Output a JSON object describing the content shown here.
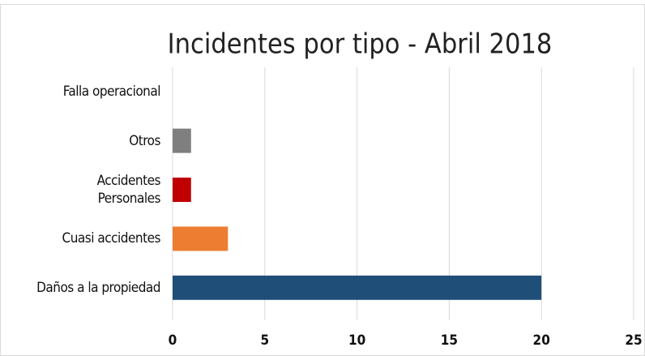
{
  "chart_data": {
    "type": "hbar",
    "title": "Incidentes por tipo - Abril 2018",
    "categories": [
      "Falla operacional",
      "Otros",
      "Accidentes\nPersonales",
      "Cuasi accidentes",
      "Daños a la propiedad"
    ],
    "values": [
      0,
      1,
      1,
      3,
      20
    ],
    "colors": [
      null,
      "#7f7f7f",
      "#c00000",
      "#ed7d31",
      "#1f4e79"
    ],
    "xlim": [
      0,
      25
    ],
    "xticks": [
      0,
      5,
      10,
      15,
      20,
      25
    ],
    "grid": true
  }
}
